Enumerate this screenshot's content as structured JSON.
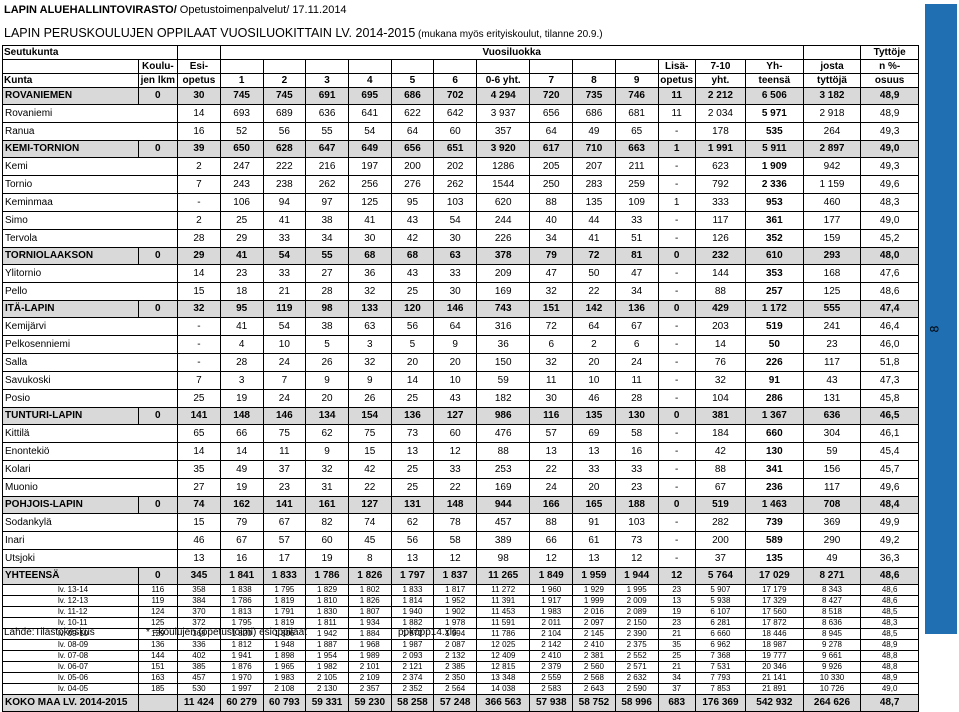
{
  "header": {
    "org": "LAPIN ALUEHALLINTOVIRASTO/",
    "org_rest": " Opetustoimenpalvelut/ 17.11.2014",
    "title": "LAPIN PERUSKOULUJEN OPPILAAT VUOSILUOKITTAIN  LV. 2014-2015",
    "title_note": " (mukana myös erityiskoulut, tilanne 20.9.)"
  },
  "side_tab": {
    "label": "8",
    "color": "#1f6fb2"
  },
  "columns": {
    "seutukunta": "Seutukunta",
    "kunta": "Kunta",
    "koulujen_a": "Koulu-",
    "koulujen_b": "jen lkm",
    "esi_a": "Esi-",
    "esi_b": "opetus",
    "vuosiluokka": "Vuosiluokka",
    "c1": "1",
    "c2": "2",
    "c3": "3",
    "c4": "4",
    "c5": "5",
    "c6": "6",
    "c06": "0-6 yht.",
    "c7": "7",
    "c8": "8",
    "c9": "9",
    "lisa_a": "Lisä-",
    "lisa_b": "opetus",
    "c710_a": "7-10",
    "c710_b": "yht.",
    "yhteensa_a": "Yh-",
    "yhteensa_b": "teensä",
    "josta_a": "josta",
    "josta_b": "tyttöjä",
    "tytt_a": "Tyttöje",
    "tytt_b": "n %-",
    "tytt_c": "osuus"
  },
  "rows": [
    {
      "type": "sect",
      "c": [
        "ROVANIEMEN",
        "0",
        "30",
        "745",
        "745",
        "691",
        "695",
        "686",
        "702",
        "4 294",
        "720",
        "735",
        "746",
        "11",
        "2 212",
        "6 506",
        "3 182",
        "48,9"
      ]
    },
    {
      "type": "sub",
      "c": [
        "Rovaniemi",
        "14",
        "693",
        "689",
        "636",
        "641",
        "622",
        "642",
        "3 937",
        "656",
        "686",
        "681",
        "11",
        "2 034",
        "5 971",
        "2 918",
        "48,9"
      ]
    },
    {
      "type": "sub",
      "c": [
        "Ranua",
        "16",
        "52",
        "56",
        "55",
        "54",
        "64",
        "60",
        "357",
        "64",
        "49",
        "65",
        "-",
        "178",
        "535",
        "264",
        "49,3"
      ]
    },
    {
      "type": "sect",
      "c": [
        "KEMI-TORNION",
        "0",
        "39",
        "650",
        "628",
        "647",
        "649",
        "656",
        "651",
        "3 920",
        "617",
        "710",
        "663",
        "1",
        "1 991",
        "5 911",
        "2 897",
        "49,0"
      ]
    },
    {
      "type": "sub",
      "c": [
        "Kemi",
        "2",
        "247",
        "222",
        "216",
        "197",
        "200",
        "202",
        "1286",
        "205",
        "207",
        "211",
        "-",
        "623",
        "1 909",
        "942",
        "49,3"
      ]
    },
    {
      "type": "sub",
      "c": [
        "Tornio",
        "7",
        "243",
        "238",
        "262",
        "256",
        "276",
        "262",
        "1544",
        "250",
        "283",
        "259",
        "-",
        "792",
        "2 336",
        "1 159",
        "49,6"
      ]
    },
    {
      "type": "sub",
      "c": [
        "Keminmaa",
        "-",
        "106",
        "94",
        "97",
        "125",
        "95",
        "103",
        "620",
        "88",
        "135",
        "109",
        "1",
        "333",
        "953",
        "460",
        "48,3"
      ]
    },
    {
      "type": "sub",
      "c": [
        "Simo",
        "2",
        "25",
        "41",
        "38",
        "41",
        "43",
        "54",
        "244",
        "40",
        "44",
        "33",
        "-",
        "117",
        "361",
        "177",
        "49,0"
      ]
    },
    {
      "type": "sub",
      "c": [
        "Tervola",
        "28",
        "29",
        "33",
        "34",
        "30",
        "42",
        "30",
        "226",
        "34",
        "41",
        "51",
        "-",
        "126",
        "352",
        "159",
        "45,2"
      ]
    },
    {
      "type": "sect",
      "c": [
        "TORNIOLAAKSON",
        "0",
        "29",
        "41",
        "54",
        "55",
        "68",
        "68",
        "63",
        "378",
        "79",
        "72",
        "81",
        "0",
        "232",
        "610",
        "293",
        "48,0"
      ]
    },
    {
      "type": "sub",
      "c": [
        "Ylitornio",
        "14",
        "23",
        "33",
        "27",
        "36",
        "43",
        "33",
        "209",
        "47",
        "50",
        "47",
        "-",
        "144",
        "353",
        "168",
        "47,6"
      ]
    },
    {
      "type": "sub",
      "c": [
        "Pello",
        "15",
        "18",
        "21",
        "28",
        "32",
        "25",
        "30",
        "169",
        "32",
        "22",
        "34",
        "-",
        "88",
        "257",
        "125",
        "48,6"
      ]
    },
    {
      "type": "sect",
      "c": [
        "ITÄ-LAPIN",
        "0",
        "32",
        "95",
        "119",
        "98",
        "133",
        "120",
        "146",
        "743",
        "151",
        "142",
        "136",
        "0",
        "429",
        "1 172",
        "555",
        "47,4"
      ]
    },
    {
      "type": "sub",
      "c": [
        "Kemijärvi",
        "-",
        "41",
        "54",
        "38",
        "63",
        "56",
        "64",
        "316",
        "72",
        "64",
        "67",
        "-",
        "203",
        "519",
        "241",
        "46,4"
      ]
    },
    {
      "type": "sub",
      "c": [
        "Pelkosenniemi",
        "-",
        "4",
        "10",
        "5",
        "3",
        "5",
        "9",
        "36",
        "6",
        "2",
        "6",
        "-",
        "14",
        "50",
        "23",
        "46,0"
      ]
    },
    {
      "type": "sub",
      "c": [
        "Salla",
        "-",
        "28",
        "24",
        "26",
        "32",
        "20",
        "20",
        "150",
        "32",
        "20",
        "24",
        "-",
        "76",
        "226",
        "117",
        "51,8"
      ]
    },
    {
      "type": "sub",
      "c": [
        "Savukoski",
        "7",
        "3",
        "7",
        "9",
        "9",
        "14",
        "10",
        "59",
        "11",
        "10",
        "11",
        "-",
        "32",
        "91",
        "43",
        "47,3"
      ]
    },
    {
      "type": "sub",
      "c": [
        "Posio",
        "25",
        "19",
        "24",
        "20",
        "26",
        "25",
        "43",
        "182",
        "30",
        "46",
        "28",
        "-",
        "104",
        "286",
        "131",
        "45,8"
      ]
    },
    {
      "type": "sect",
      "c": [
        "TUNTURI-LAPIN",
        "0",
        "141",
        "148",
        "146",
        "134",
        "154",
        "136",
        "127",
        "986",
        "116",
        "135",
        "130",
        "0",
        "381",
        "1 367",
        "636",
        "46,5"
      ]
    },
    {
      "type": "sub",
      "c": [
        "Kittilä",
        "65",
        "66",
        "75",
        "62",
        "75",
        "73",
        "60",
        "476",
        "57",
        "69",
        "58",
        "-",
        "184",
        "660",
        "304",
        "46,1"
      ]
    },
    {
      "type": "sub",
      "c": [
        "Enontekiö",
        "14",
        "14",
        "11",
        "9",
        "15",
        "13",
        "12",
        "88",
        "13",
        "13",
        "16",
        "-",
        "42",
        "130",
        "59",
        "45,4"
      ]
    },
    {
      "type": "sub",
      "c": [
        "Kolari",
        "35",
        "49",
        "37",
        "32",
        "42",
        "25",
        "33",
        "253",
        "22",
        "33",
        "33",
        "-",
        "88",
        "341",
        "156",
        "45,7"
      ]
    },
    {
      "type": "sub",
      "c": [
        "Muonio",
        "27",
        "19",
        "23",
        "31",
        "22",
        "25",
        "22",
        "169",
        "24",
        "20",
        "23",
        "-",
        "67",
        "236",
        "117",
        "49,6"
      ]
    },
    {
      "type": "sect",
      "c": [
        "POHJOIS-LAPIN",
        "0",
        "74",
        "162",
        "141",
        "161",
        "127",
        "131",
        "148",
        "944",
        "166",
        "165",
        "188",
        "0",
        "519",
        "1 463",
        "708",
        "48,4"
      ]
    },
    {
      "type": "sub",
      "c": [
        "Sodankylä",
        "15",
        "79",
        "67",
        "82",
        "74",
        "62",
        "78",
        "457",
        "88",
        "91",
        "103",
        "-",
        "282",
        "739",
        "369",
        "49,9"
      ]
    },
    {
      "type": "sub",
      "c": [
        "Inari",
        "46",
        "67",
        "57",
        "60",
        "45",
        "56",
        "58",
        "389",
        "66",
        "61",
        "73",
        "-",
        "200",
        "589",
        "290",
        "49,2"
      ]
    },
    {
      "type": "sub",
      "c": [
        "Utsjoki",
        "13",
        "16",
        "17",
        "19",
        "8",
        "13",
        "12",
        "98",
        "12",
        "13",
        "12",
        "-",
        "37",
        "135",
        "49",
        "36,3"
      ]
    },
    {
      "type": "total",
      "c": [
        "YHTEENSÄ",
        "0",
        "345",
        "1 841",
        "1 833",
        "1 786",
        "1 826",
        "1 797",
        "1 837",
        "11 265",
        "1 849",
        "1 959",
        "1 944",
        "12",
        "5 764",
        "17 029",
        "8 271",
        "48,6"
      ]
    },
    {
      "type": "yr",
      "c": [
        "lv. 13-14",
        "116",
        "358",
        "1 838",
        "1 795",
        "1 829",
        "1 802",
        "1 833",
        "1 817",
        "11 272",
        "1 960",
        "1 929",
        "1 995",
        "23",
        "5 907",
        "17 179",
        "8 343",
        "48,6"
      ]
    },
    {
      "type": "yr",
      "c": [
        "lv. 12-13",
        "119",
        "384",
        "1 786",
        "1 819",
        "1 810",
        "1 826",
        "1 814",
        "1 952",
        "11 391",
        "1 917",
        "1 999",
        "2 009",
        "13",
        "5 938",
        "17 329",
        "8 427",
        "48,6"
      ]
    },
    {
      "type": "yr",
      "c": [
        "lv. 11-12",
        "124",
        "370",
        "1 813",
        "1 791",
        "1 830",
        "1 807",
        "1 940",
        "1 902",
        "11 453",
        "1 983",
        "2 016",
        "2 089",
        "19",
        "6 107",
        "17 560",
        "8 518",
        "48,5"
      ]
    },
    {
      "type": "yr",
      "c": [
        "lv. 10-11",
        "125",
        "372",
        "1 795",
        "1 819",
        "1 811",
        "1 934",
        "1 882",
        "1 978",
        "11 591",
        "2 011",
        "2 097",
        "2 150",
        "23",
        "6 281",
        "17 872",
        "8 636",
        "48,3"
      ]
    },
    {
      "type": "yr",
      "c": [
        "lv. 09-10",
        "129",
        "368",
        "1 820",
        "1 806",
        "1 942",
        "1 884",
        "1 972",
        "1 994",
        "11 786",
        "2 104",
        "2 145",
        "2 390",
        "21",
        "6 660",
        "18 446",
        "8 945",
        "48,5"
      ]
    },
    {
      "type": "yr",
      "c": [
        "lv. 08-09",
        "136",
        "336",
        "1 812",
        "1 948",
        "1 887",
        "1 968",
        "1 987",
        "2 087",
        "12 025",
        "2 142",
        "2 410",
        "2 375",
        "35",
        "6 962",
        "18 987",
        "9 278",
        "48,9"
      ]
    },
    {
      "type": "yr",
      "c": [
        "lv. 07-08",
        "144",
        "402",
        "1 941",
        "1 898",
        "1 954",
        "1 989",
        "2 093",
        "2 132",
        "12 409",
        "2 410",
        "2 381",
        "2 552",
        "25",
        "7 368",
        "19 777",
        "9 661",
        "48,8"
      ]
    },
    {
      "type": "yr",
      "c": [
        "lv. 06-07",
        "151",
        "385",
        "1 876",
        "1 965",
        "1 982",
        "2 101",
        "2 121",
        "2 385",
        "12 815",
        "2 379",
        "2 560",
        "2 571",
        "21",
        "7 531",
        "20 346",
        "9 926",
        "48,8"
      ]
    },
    {
      "type": "yr",
      "c": [
        "lv. 05-06",
        "163",
        "457",
        "1 970",
        "1 983",
        "2 105",
        "2 109",
        "2 374",
        "2 350",
        "13 348",
        "2 559",
        "2 568",
        "2 632",
        "34",
        "7 793",
        "21 141",
        "10 330",
        "48,9"
      ]
    },
    {
      "type": "yr",
      "c": [
        "lv. 04-05",
        "185",
        "530",
        "1 997",
        "2 108",
        "2 130",
        "2 357",
        "2 352",
        "2 564",
        "14 038",
        "2 583",
        "2 643",
        "2 590",
        "37",
        "7 853",
        "21 891",
        "10 726",
        "49,0"
      ]
    },
    {
      "type": "total",
      "c": [
        "KOKO MAA  LV. 2014-2015",
        "",
        "11 424",
        "60 279",
        "60 793",
        "59 331",
        "59 230",
        "58 258",
        "57 248",
        "366 563",
        "57 938",
        "58 752",
        "58 996",
        "683",
        "176 369",
        "542 932",
        "264 626",
        "48,7"
      ]
    }
  ],
  "footer": {
    "source": "Lähde:Tilastokeskus",
    "note": "* =koulujen (opetustoimi) esioppilaat",
    "file": "ppkopp14.xls"
  }
}
